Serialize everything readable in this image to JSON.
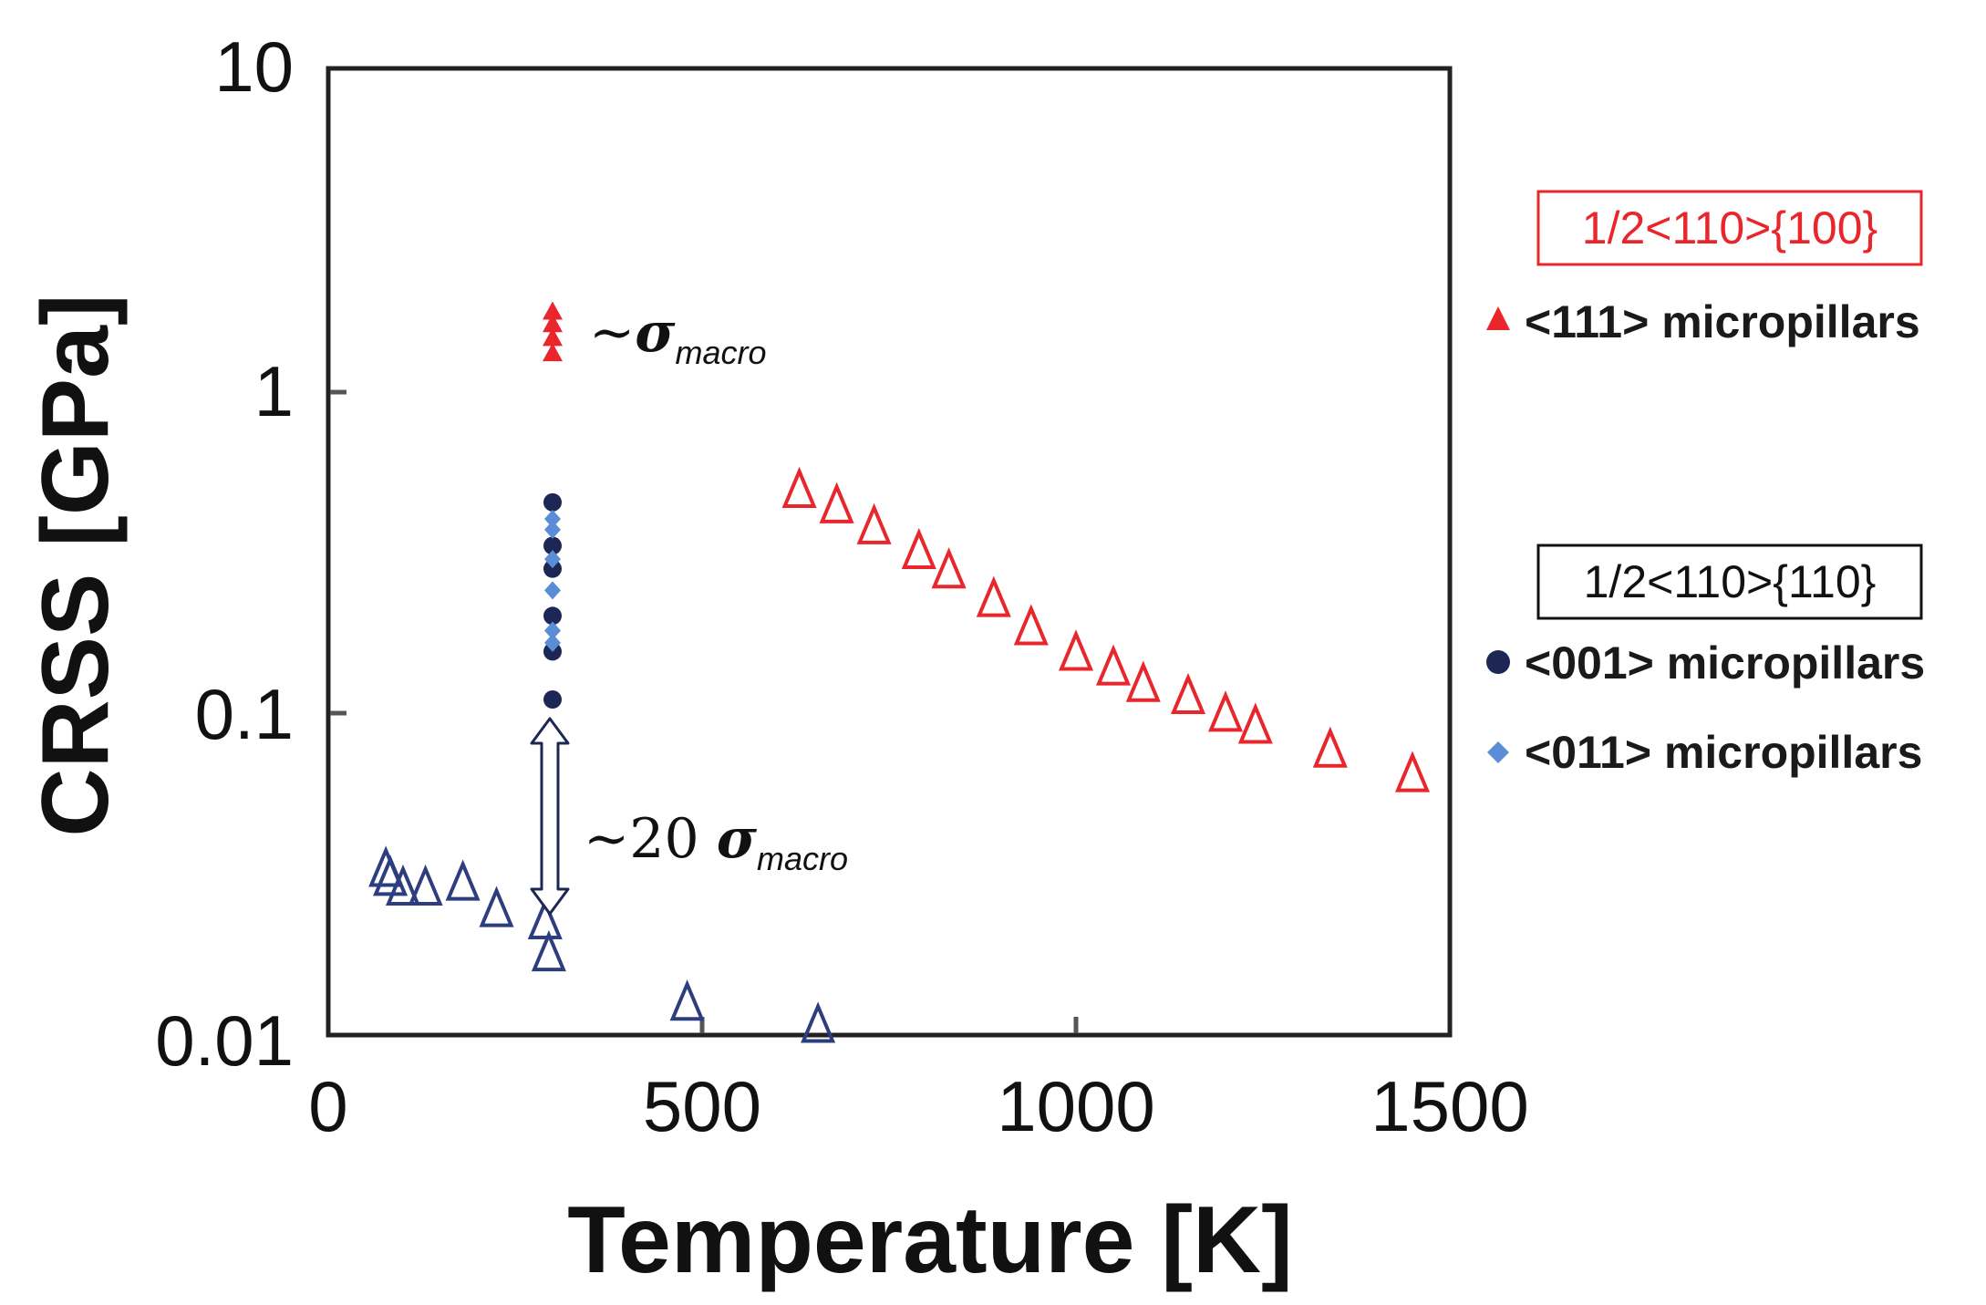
{
  "chart_data": {
    "type": "scatter",
    "xlabel": "Temperature [K]",
    "ylabel": "CRSS [GPa]",
    "xlim": [
      0,
      1500
    ],
    "ylim": [
      0.01,
      10
    ],
    "yscale": "log",
    "x_ticks": [
      "0",
      "500",
      "1000",
      "1500"
    ],
    "y_ticks": [
      "0.01",
      "0.1",
      "1",
      "10"
    ],
    "legend_groups": [
      {
        "header": "1/2<110>{100}",
        "header_color": "#e8262b",
        "entries": [
          {
            "marker": "triangle",
            "color": "#e8262b",
            "label": "<111> micropillars"
          }
        ]
      },
      {
        "header": "1/2<110>{110}",
        "header_color": "#111111",
        "entries": [
          {
            "marker": "circle",
            "color": "#1c2756",
            "label": "<001> micropillars"
          },
          {
            "marker": "diamond",
            "color": "#5b8dd6",
            "label": "<011> micropillars"
          }
        ]
      }
    ],
    "series": [
      {
        "name": "<111> micropillars",
        "marker": "triangle-filled",
        "color": "#e8262b",
        "x": [
          300,
          300,
          300,
          300
        ],
        "y": [
          1.3,
          1.45,
          1.6,
          1.75
        ]
      },
      {
        "name": "<001> micropillars",
        "marker": "circle-filled",
        "color": "#1c2756",
        "x": [
          300,
          300,
          300,
          300,
          300,
          300
        ],
        "y": [
          0.45,
          0.33,
          0.28,
          0.2,
          0.155,
          0.11
        ]
      },
      {
        "name": "<011> micropillars",
        "marker": "diamond-filled",
        "color": "#5b8dd6",
        "x": [
          300,
          300,
          300,
          300,
          300,
          300
        ],
        "y": [
          0.4,
          0.37,
          0.3,
          0.24,
          0.18,
          0.165
        ]
      },
      {
        "name": "1/2<110>{100} macro",
        "marker": "triangle-open",
        "color": "#e8262b",
        "x": [
          630,
          680,
          730,
          790,
          830,
          890,
          940,
          1000,
          1050,
          1090,
          1150,
          1200,
          1240,
          1340,
          1450
        ],
        "y": [
          0.48,
          0.43,
          0.37,
          0.31,
          0.27,
          0.22,
          0.18,
          0.15,
          0.135,
          0.12,
          0.11,
          0.097,
          0.089,
          0.075,
          0.063
        ]
      },
      {
        "name": "1/2<110>{110} macro",
        "marker": "triangle-open",
        "color": "#2d3e7e",
        "x": [
          77,
          83,
          100,
          130,
          180,
          225,
          290,
          295,
          480,
          655
        ],
        "y": [
          0.032,
          0.03,
          0.028,
          0.028,
          0.029,
          0.024,
          0.022,
          0.0175,
          0.0123,
          0.0105
        ]
      }
    ],
    "annotations": [
      {
        "prefix": "~",
        "symbol": "σ",
        "subscript": "macro"
      },
      {
        "prefix": "~20 ",
        "symbol": "σ",
        "subscript": "macro"
      }
    ]
  }
}
